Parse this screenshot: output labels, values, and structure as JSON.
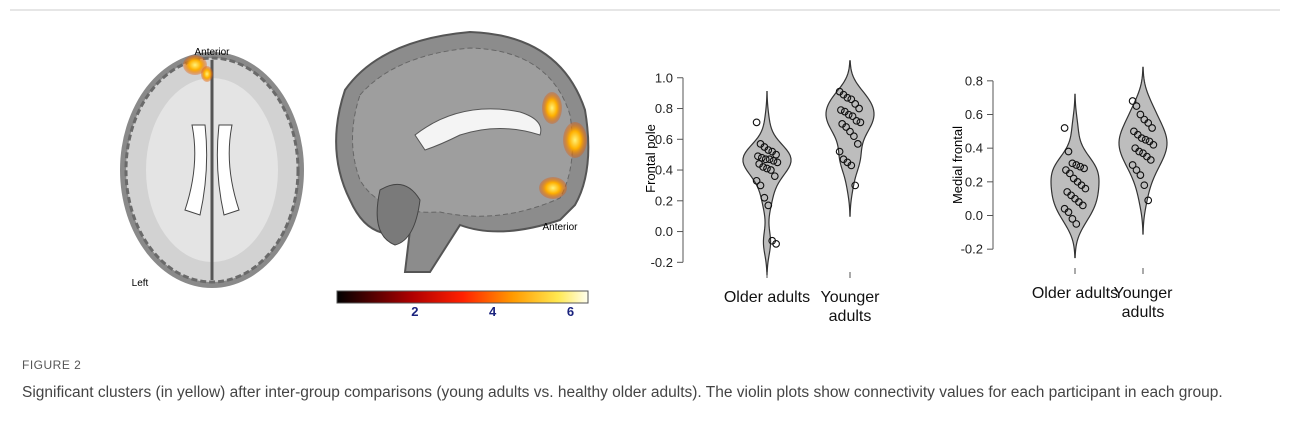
{
  "brain": {
    "axial_labels": [
      "Anterior",
      "Left"
    ],
    "sagittal_label": "Anterior",
    "colorbar_ticks": [
      2,
      4,
      6
    ]
  },
  "chart_data": [
    {
      "type": "violin",
      "ylabel": "Frontal pole",
      "categories": [
        "Older adults",
        "Younger adults"
      ],
      "ylim": [
        -0.25,
        1.2
      ],
      "yticks": [
        {
          "value": 1,
          "label": "1.0"
        },
        0.8,
        0.6,
        0.4,
        0.2,
        {
          "value": 0,
          "label": "0.0"
        },
        -0.2
      ],
      "color": "#bdbdbd",
      "series": [
        {
          "values": [
            0.71,
            0.57,
            0.55,
            0.53,
            0.52,
            0.5,
            0.49,
            0.48,
            0.47,
            0.47,
            0.46,
            0.45,
            0.44,
            0.42,
            0.41,
            0.4,
            0.36,
            0.33,
            0.3,
            0.22,
            0.17,
            -0.06,
            -0.08
          ]
        },
        {
          "values": [
            0.91,
            0.89,
            0.87,
            0.86,
            0.83,
            0.8,
            0.79,
            0.78,
            0.76,
            0.75,
            0.72,
            0.71,
            0.7,
            0.68,
            0.65,
            0.62,
            0.57,
            0.52,
            0.47,
            0.45,
            0.43,
            0.3
          ]
        }
      ]
    },
    {
      "type": "violin",
      "ylabel": "Medial frontal",
      "categories": [
        "Older adults",
        "Younger adults"
      ],
      "ylim": [
        -0.3,
        0.9
      ],
      "yticks": [
        0.8,
        0.6,
        0.4,
        0.2,
        {
          "value": 0,
          "label": "0.0"
        },
        -0.2
      ],
      "color": "#bdbdbd",
      "series": [
        {
          "values": [
            0.52,
            0.38,
            0.31,
            0.3,
            0.29,
            0.28,
            0.27,
            0.25,
            0.22,
            0.2,
            0.18,
            0.16,
            0.14,
            0.12,
            0.1,
            0.08,
            0.06,
            0.04,
            0.02,
            -0.02,
            -0.05
          ]
        },
        {
          "values": [
            0.68,
            0.65,
            0.6,
            0.57,
            0.55,
            0.52,
            0.5,
            0.48,
            0.46,
            0.45,
            0.44,
            0.42,
            0.4,
            0.38,
            0.37,
            0.35,
            0.33,
            0.3,
            0.27,
            0.24,
            0.18,
            0.09
          ]
        }
      ]
    }
  ],
  "figure": {
    "label": "FIGURE 2",
    "caption": "Significant clusters (in yellow) after inter-group comparisons (young adults vs. healthy older adults). The violin plots show connectivity values for each participant in each group."
  }
}
